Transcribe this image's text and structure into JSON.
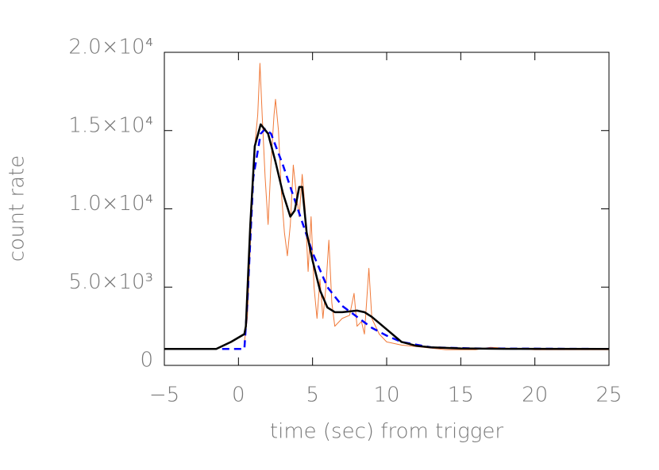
{
  "chart_data": {
    "type": "line",
    "xlabel": "time (sec) from trigger",
    "ylabel": "count rate",
    "xlim": [
      -5,
      25
    ],
    "xticks": [
      {
        "value": -5,
        "label": "−5"
      },
      0,
      5,
      10,
      15,
      20,
      25
    ],
    "ylim": [
      0,
      20000
    ],
    "yticks": [
      0,
      {
        "value": 5000,
        "label": "5.0×10³"
      },
      {
        "value": 10000,
        "label": "1.0×10⁴"
      },
      {
        "value": 15000,
        "label": "1.5×10⁴"
      },
      {
        "value": 20000,
        "label": "2.0×10⁴"
      }
    ],
    "series": [
      {
        "color": "#f07a3a",
        "width": 1,
        "dashed": false,
        "x": [
          0.4,
          0.6,
          0.9,
          1.1,
          1.3,
          1.45,
          1.6,
          1.8,
          2.0,
          2.2,
          2.4,
          2.5,
          2.7,
          2.9,
          3.1,
          3.3,
          3.5,
          3.7,
          3.9,
          4.1,
          4.3,
          4.5,
          4.7,
          4.9,
          5.1,
          5.3,
          5.5,
          5.7,
          5.9,
          6.1,
          6.3,
          6.5,
          7,
          7.5,
          7.8,
          8,
          8.3,
          8.5,
          8.8,
          9,
          9.5,
          10,
          11,
          12,
          13,
          14,
          15,
          16,
          17,
          18,
          19,
          20,
          25
        ],
        "values": [
          1500,
          3000,
          10000,
          14000,
          16000,
          19300,
          16000,
          12000,
          9000,
          13000,
          16000,
          17000,
          15000,
          11000,
          8500,
          7000,
          9000,
          12800,
          11000,
          9500,
          12200,
          10000,
          6000,
          9500,
          5000,
          3000,
          5500,
          3000,
          5000,
          8000,
          4000,
          2500,
          3000,
          3200,
          4600,
          2500,
          2800,
          2000,
          6200,
          3000,
          2000,
          1500,
          1300,
          1200,
          1100,
          1000,
          1000,
          1000,
          1150,
          1100,
          1050,
          1000,
          1000
        ]
      },
      {
        "color": "#0000ff",
        "width": 2.5,
        "dashed": true,
        "x": [
          -1.1,
          0.4,
          0.6,
          1,
          1.5,
          1.8,
          2.2,
          3,
          4,
          5,
          6,
          7,
          8,
          9,
          10,
          11,
          13,
          16,
          25
        ],
        "values": [
          1050,
          1050,
          4000,
          12000,
          14800,
          15100,
          14800,
          12800,
          10000,
          7200,
          5000,
          3800,
          3100,
          2400,
          1900,
          1500,
          1150,
          1080,
          1050
        ]
      },
      {
        "color": "#000000",
        "width": 2.5,
        "dashed": false,
        "x": [
          -5,
          -1.5,
          -0.5,
          0.4,
          0.5,
          0.8,
          1.1,
          1.5,
          2,
          2.5,
          3,
          3.5,
          3.8,
          4.1,
          4.3,
          4.6,
          5,
          5.5,
          6,
          6.5,
          7,
          7.5,
          8,
          8.5,
          9,
          10,
          11,
          12,
          13,
          15,
          18,
          25
        ],
        "values": [
          1050,
          1050,
          1500,
          2000,
          2500,
          9000,
          14000,
          15400,
          14800,
          13000,
          11000,
          9500,
          9900,
          11400,
          11400,
          8500,
          6700,
          4800,
          3700,
          3400,
          3400,
          3450,
          3500,
          3400,
          3100,
          2300,
          1500,
          1250,
          1150,
          1080,
          1060,
          1050
        ]
      }
    ]
  }
}
